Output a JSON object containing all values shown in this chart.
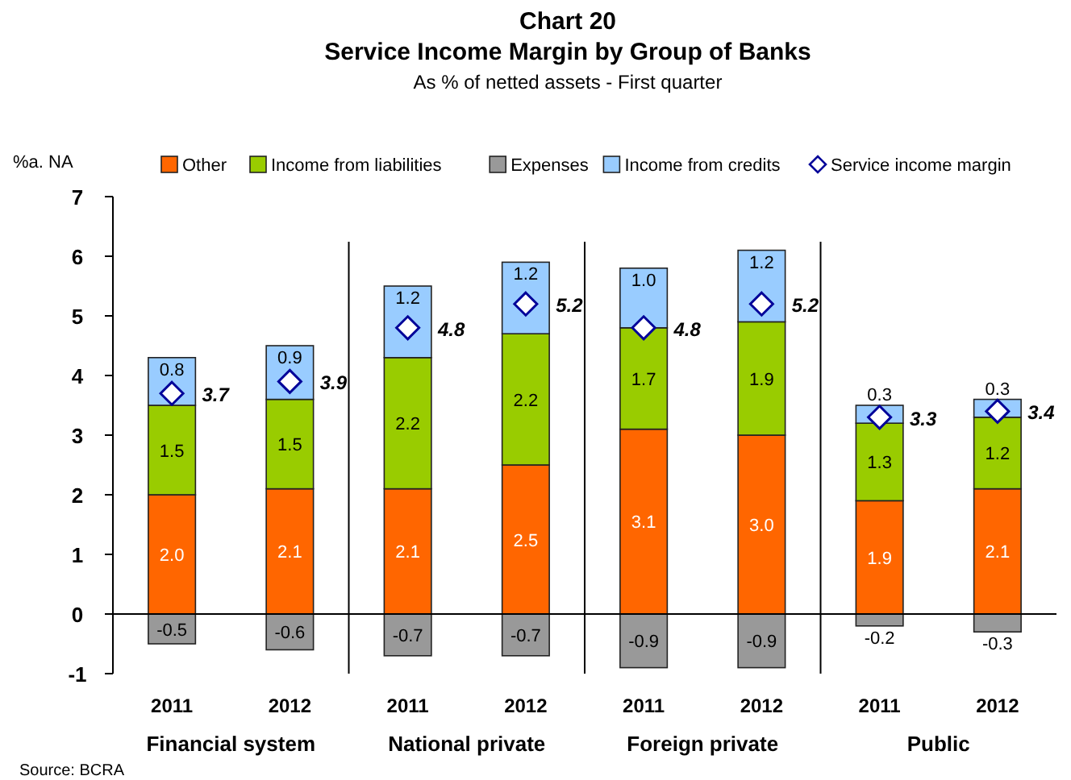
{
  "chart_data": {
    "type": "bar",
    "stacked": true,
    "title": "Chart 20\nService Income Margin by Group of Banks",
    "subtitle": "As % of netted assets - First quarter",
    "ylabel": "%a. NA",
    "categories": [
      "2011",
      "2012",
      "2011",
      "2012",
      "2011",
      "2012",
      "2011",
      "2012"
    ],
    "series": [
      {
        "name": "Other",
        "color": "#ff6600",
        "values": [
          2.0,
          2.1,
          2.1,
          2.5,
          3.1,
          3.0,
          1.9,
          2.1
        ],
        "value_labels": [
          "2.0",
          "2.1",
          "2.1",
          "2.5",
          "3.1",
          "3.0",
          "1.9",
          "2.1"
        ]
      },
      {
        "name": "Income from liabilities",
        "color": "#99cc00",
        "values": [
          1.5,
          1.5,
          2.2,
          2.2,
          1.7,
          1.9,
          1.3,
          1.2
        ],
        "value_labels": [
          "1.5",
          "1.5",
          "2.2",
          "2.2",
          "1.7",
          "1.9",
          "1.3",
          "1.2"
        ]
      },
      {
        "name": "Expenses",
        "color": "#999999",
        "values": [
          -0.5,
          -0.6,
          -0.7,
          -0.7,
          -0.9,
          -0.9,
          -0.2,
          -0.3
        ],
        "value_labels": [
          "-0.5",
          "-0.6",
          "-0.7",
          "-0.7",
          "-0.9",
          "-0.9",
          "-0.2",
          "-0.3"
        ]
      },
      {
        "name": "Income from credits",
        "color": "#99ccff",
        "values": [
          0.8,
          0.9,
          1.2,
          1.2,
          1.0,
          1.2,
          0.3,
          0.3
        ],
        "value_labels": [
          "0.8",
          "0.9",
          "1.2",
          "1.2",
          "1.0",
          "1.2",
          "0.3",
          "0.3"
        ]
      },
      {
        "name": "Service income margin",
        "type": "scatter",
        "marker": "diamond",
        "color": "#000099",
        "values": [
          3.7,
          3.9,
          4.8,
          5.2,
          4.8,
          5.2,
          3.3,
          3.4
        ],
        "value_labels": [
          "3.7",
          "3.9",
          "4.8",
          "5.2",
          "4.8",
          "5.2",
          "3.3",
          "3.4"
        ]
      }
    ],
    "ylim": [
      -1,
      7
    ],
    "ref_lines": [
      {
        "axis": "y",
        "value": 0
      }
    ],
    "yticks": [
      -1,
      0,
      1,
      2,
      3,
      4,
      5,
      6,
      7
    ],
    "grid": false,
    "legend": "top",
    "annotations": [
      "Financial system",
      "National private",
      "Foreign private",
      "Public",
      "Source: BCRA"
    ]
  }
}
